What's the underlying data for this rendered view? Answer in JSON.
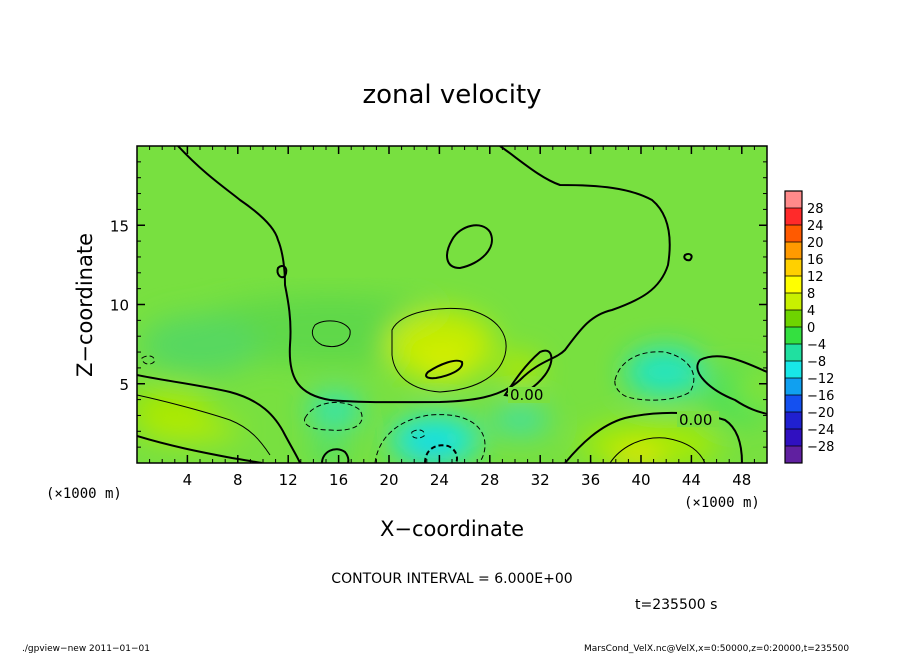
{
  "chart_data": {
    "type": "heatmap",
    "title": "zonal velocity",
    "xlabel": "X−coordinate",
    "ylabel": "Z−coordinate",
    "x_unit": "(×1000 m)",
    "y_unit": "(×1000 m)",
    "xlim": [
      0,
      50
    ],
    "ylim": [
      0,
      20
    ],
    "x_ticks": [
      4,
      8,
      12,
      16,
      20,
      24,
      28,
      32,
      36,
      40,
      44,
      48
    ],
    "y_ticks": [
      5,
      10,
      15
    ],
    "contour_interval_text": "CONTOUR INTERVAL = 6.000E+00",
    "contour_labels": [
      {
        "text": "0.00",
        "x": 31,
        "z": 4.2
      },
      {
        "text": "0.00",
        "x": 44.2,
        "z": 2.6
      }
    ],
    "time_text": "t=235500 s",
    "colorbar": {
      "labels": [
        "28",
        "24",
        "20",
        "16",
        "12",
        "8",
        "4",
        "0",
        "−4",
        "−8",
        "−12",
        "−16",
        "−20",
        "−24",
        "−28"
      ],
      "colors": [
        "#ff8a8a",
        "#ff2a2a",
        "#ff5a00",
        "#ff9a00",
        "#ffd000",
        "#ffff00",
        "#c8f000",
        "#6ed400",
        "#34e040",
        "#20e0a0",
        "#18e8e8",
        "#10a0f0",
        "#1450f0",
        "#2020d0",
        "#3010c0",
        "#6020a0"
      ]
    },
    "features": [
      {
        "kind": "positive_max",
        "x": 24.5,
        "z": 6.0,
        "approx_value": 8
      },
      {
        "kind": "positive_max",
        "x": 40.5,
        "z": 0.4,
        "approx_value": 10
      },
      {
        "kind": "negative_min",
        "x": 24.5,
        "z": 0.5,
        "approx_value": -10
      },
      {
        "kind": "negative_min",
        "x": 39.0,
        "z": 6.0,
        "approx_value": -6
      },
      {
        "kind": "negative_min",
        "x": 16.0,
        "z": 2.5,
        "approx_value": -6
      }
    ]
  },
  "footer": {
    "left": "./gpview−new   2011−01−01",
    "right": "MarsCond_VelX.nc@VelX,x=0:50000,z=0:20000,t=235500"
  }
}
